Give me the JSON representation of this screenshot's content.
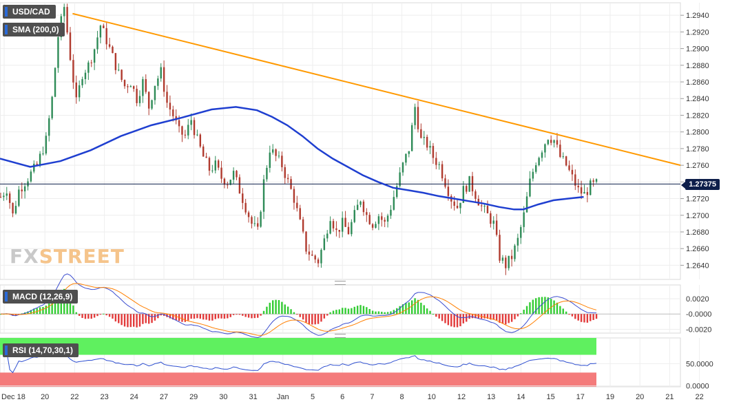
{
  "tags": {
    "symbol": "USD/CAD",
    "sma": "SMA (200,0)",
    "macd": "MACD (12,26,9)",
    "rsi": "RSI (14,70,30,1)"
  },
  "watermark": {
    "part1": "FX",
    "part2": "STREET"
  },
  "current_price_label": "1.27375",
  "colors": {
    "bull_candle": "#2e8b57",
    "bear_candle": "#b03a2e",
    "sma": "#1f3fd0",
    "trendline": "#ff9900",
    "macd_line": "#3a4ccf",
    "signal_line": "#ff7f00",
    "hist_pos": "#33cc33",
    "hist_neg": "#e23a3a",
    "rsi_line": "#2e4fd0",
    "rsi_overbought": "#5ff05f",
    "rsi_oversold": "#f47b7b",
    "price_label_bg": "#0d1e4a"
  },
  "chart_data": [
    {
      "type": "candlestick",
      "instrument": "USD/CAD",
      "x_labels": [
        "Dec 18",
        "20",
        "22",
        "23",
        "24",
        "27",
        "29",
        "30",
        "31",
        "Jan",
        "5",
        "6",
        "7",
        "8",
        "10",
        "12",
        "13",
        "14",
        "15",
        "17",
        "19",
        "20",
        "21",
        "22"
      ],
      "y_ticks": [
        1.264,
        1.266,
        1.268,
        1.27,
        1.272,
        1.274,
        1.276,
        1.278,
        1.28,
        1.282,
        1.284,
        1.286,
        1.288,
        1.29,
        1.292,
        1.294
      ],
      "y_tick_labels": [
        "1.2640",
        "1.2660",
        "1.2680",
        "1.2700",
        "1.2720",
        "1.2740",
        "1.2760",
        "1.2780",
        "1.2800",
        "1.2820",
        "1.2840",
        "1.2860",
        "1.2880",
        "1.2900",
        "1.2920",
        "1.2940"
      ],
      "ylim": [
        1.2623,
        1.2955
      ],
      "current_price": 1.27375,
      "close_path": [
        [
          0,
          1.2722
        ],
        [
          2,
          1.2732
        ],
        [
          4,
          1.27
        ],
        [
          6,
          1.273
        ],
        [
          9,
          1.2745
        ],
        [
          12,
          1.276
        ],
        [
          15,
          1.279
        ],
        [
          17,
          1.284
        ],
        [
          19,
          1.2915
        ],
        [
          21,
          1.295
        ],
        [
          23,
          1.289
        ],
        [
          25,
          1.2835
        ],
        [
          27,
          1.287
        ],
        [
          29,
          1.288
        ],
        [
          31,
          1.29
        ],
        [
          33,
          1.2928
        ],
        [
          35,
          1.291
        ],
        [
          37,
          1.289
        ],
        [
          39,
          1.287
        ],
        [
          41,
          1.2855
        ],
        [
          43,
          1.286
        ],
        [
          45,
          1.284
        ],
        [
          47,
          1.286
        ],
        [
          49,
          1.283
        ],
        [
          51,
          1.2858
        ],
        [
          53,
          1.2872
        ],
        [
          55,
          1.2835
        ],
        [
          57,
          1.282
        ],
        [
          59,
          1.28
        ],
        [
          61,
          1.2795
        ],
        [
          63,
          1.2815
        ],
        [
          65,
          1.279
        ],
        [
          67,
          1.277
        ],
        [
          69,
          1.2755
        ],
        [
          71,
          1.276
        ],
        [
          73,
          1.2745
        ],
        [
          75,
          1.274
        ],
        [
          77,
          1.275
        ],
        [
          79,
          1.273
        ],
        [
          81,
          1.271
        ],
        [
          83,
          1.269
        ],
        [
          85,
          1.268
        ],
        [
          87,
          1.274
        ],
        [
          89,
          1.278
        ],
        [
          91,
          1.277
        ],
        [
          93,
          1.276
        ],
        [
          95,
          1.274
        ],
        [
          97,
          1.272
        ],
        [
          99,
          1.269
        ],
        [
          101,
          1.266
        ],
        [
          103,
          1.265
        ],
        [
          105,
          1.2645
        ],
        [
          107,
          1.267
        ],
        [
          109,
          1.27
        ],
        [
          111,
          1.268
        ],
        [
          113,
          1.269
        ],
        [
          115,
          1.268
        ],
        [
          117,
          1.27
        ],
        [
          119,
          1.272
        ],
        [
          121,
          1.27
        ],
        [
          123,
          1.269
        ],
        [
          125,
          1.27
        ],
        [
          127,
          1.269
        ],
        [
          129,
          1.271
        ],
        [
          131,
          1.2735
        ],
        [
          133,
          1.276
        ],
        [
          135,
          1.278
        ],
        [
          137,
          1.283
        ],
        [
          139,
          1.279
        ],
        [
          141,
          1.2785
        ],
        [
          143,
          1.277
        ],
        [
          145,
          1.276
        ],
        [
          147,
          1.274
        ],
        [
          149,
          1.272
        ],
        [
          151,
          1.271
        ],
        [
          153,
          1.273
        ],
        [
          155,
          1.274
        ],
        [
          157,
          1.2725
        ],
        [
          159,
          1.271
        ],
        [
          161,
          1.27
        ],
        [
          163,
          1.269
        ],
        [
          165,
          1.265
        ],
        [
          167,
          1.264
        ],
        [
          169,
          1.265
        ],
        [
          171,
          1.267
        ],
        [
          173,
          1.27
        ],
        [
          175,
          1.274
        ],
        [
          177,
          1.2765
        ],
        [
          179,
          1.278
        ],
        [
          181,
          1.2795
        ],
        [
          183,
          1.279
        ],
        [
          185,
          1.277
        ],
        [
          187,
          1.276
        ],
        [
          189,
          1.2745
        ],
        [
          191,
          1.273
        ],
        [
          193,
          1.2725
        ],
        [
          195,
          1.2735
        ],
        [
          197,
          1.27375
        ]
      ],
      "sma_200_path": [
        [
          0,
          1.2768
        ],
        [
          10,
          1.2758
        ],
        [
          20,
          1.2765
        ],
        [
          30,
          1.2778
        ],
        [
          40,
          1.2795
        ],
        [
          50,
          1.2808
        ],
        [
          60,
          1.2817
        ],
        [
          70,
          1.2827
        ],
        [
          78,
          1.283
        ],
        [
          85,
          1.2826
        ],
        [
          90,
          1.2818
        ],
        [
          95,
          1.2808
        ],
        [
          100,
          1.2795
        ],
        [
          105,
          1.278
        ],
        [
          110,
          1.2768
        ],
        [
          115,
          1.2758
        ],
        [
          120,
          1.2748
        ],
        [
          125,
          1.274
        ],
        [
          130,
          1.2733
        ],
        [
          135,
          1.273
        ],
        [
          140,
          1.2727
        ],
        [
          145,
          1.2723
        ],
        [
          150,
          1.272
        ],
        [
          155,
          1.2717
        ],
        [
          160,
          1.2714
        ],
        [
          165,
          1.271
        ],
        [
          170,
          1.2707
        ],
        [
          173,
          1.2707
        ],
        [
          178,
          1.2713
        ],
        [
          183,
          1.2718
        ],
        [
          188,
          1.272
        ],
        [
          193,
          1.2722
        ]
      ],
      "trendline": [
        [
          24,
          1.2942
        ],
        [
          225,
          1.276
        ]
      ],
      "n_bars_total": 225
    },
    {
      "type": "macd",
      "name": "MACD (12,26,9)",
      "y_ticks": [
        0.002,
        0.0,
        -0.002
      ],
      "y_tick_labels": [
        "0.0020",
        "-0.0000",
        "-0.0020"
      ],
      "ylim": [
        -0.0025,
        0.0038
      ]
    },
    {
      "type": "rsi",
      "name": "RSI (14,70,30,1)",
      "y_ticks": [
        50,
        0
      ],
      "y_tick_labels": [
        "50.0000",
        "0.0000"
      ],
      "overbought": 70,
      "oversold": 30,
      "ylim": [
        -2,
        108
      ]
    }
  ]
}
